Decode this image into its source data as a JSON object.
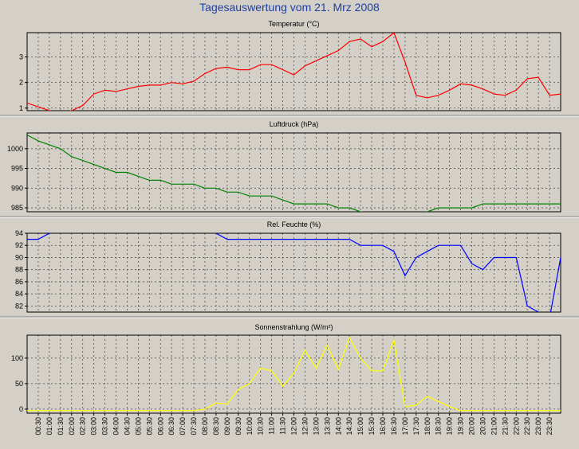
{
  "title": "Tagesauswertung vom 21. Mrz 2008",
  "chart_data": [
    {
      "type": "line",
      "title": "Temperatur (°C)",
      "color": "#ff0000",
      "ylim": [
        0.9,
        3.95
      ],
      "yticks": [
        1,
        2,
        3
      ],
      "x": [
        "00:00",
        "00:30",
        "01:00",
        "01:30",
        "02:00",
        "02:30",
        "03:00",
        "03:30",
        "04:00",
        "04:30",
        "05:00",
        "05:30",
        "06:00",
        "06:30",
        "07:00",
        "07:30",
        "08:00",
        "08:30",
        "09:00",
        "09:30",
        "10:00",
        "10:30",
        "11:00",
        "11:30",
        "12:00",
        "12:30",
        "13:00",
        "13:30",
        "14:00",
        "14:30",
        "15:00",
        "15:30",
        "16:00",
        "16:30",
        "17:00",
        "17:30",
        "18:00",
        "18:30",
        "19:00",
        "19:30",
        "20:00",
        "20:30",
        "21:00",
        "21:30",
        "22:00",
        "22:30",
        "23:00",
        "23:30",
        "24:00"
      ],
      "values": [
        1.2,
        1.05,
        0.9,
        0.8,
        0.9,
        1.1,
        1.55,
        1.7,
        1.65,
        1.75,
        1.85,
        1.9,
        1.9,
        2.0,
        1.95,
        2.05,
        2.35,
        2.55,
        2.6,
        2.5,
        2.5,
        2.7,
        2.7,
        2.5,
        2.3,
        2.65,
        2.85,
        3.05,
        3.25,
        3.6,
        3.7,
        3.4,
        3.6,
        3.95,
        2.8,
        1.5,
        1.4,
        1.5,
        1.7,
        1.95,
        1.9,
        1.75,
        1.55,
        1.5,
        1.7,
        2.15,
        2.2,
        1.5,
        1.55
      ]
    },
    {
      "type": "line",
      "title": "Luftdruck (hPa)",
      "color": "#008000",
      "ylim": [
        984,
        1004
      ],
      "yticks": [
        985,
        990,
        995,
        1000
      ],
      "x": [
        "00:00",
        "00:30",
        "01:00",
        "01:30",
        "02:00",
        "02:30",
        "03:00",
        "03:30",
        "04:00",
        "04:30",
        "05:00",
        "05:30",
        "06:00",
        "06:30",
        "07:00",
        "07:30",
        "08:00",
        "08:30",
        "09:00",
        "09:30",
        "10:00",
        "10:30",
        "11:00",
        "11:30",
        "12:00",
        "12:30",
        "13:00",
        "13:30",
        "14:00",
        "14:30",
        "15:00",
        "15:30",
        "16:00",
        "16:30",
        "17:00",
        "17:30",
        "18:00",
        "18:30",
        "19:00",
        "19:30",
        "20:00",
        "20:30",
        "21:00",
        "21:30",
        "22:00",
        "22:30",
        "23:00",
        "23:30",
        "24:00"
      ],
      "values": [
        1003.5,
        1002.0,
        1001.0,
        1000.0,
        998.0,
        997.0,
        996.0,
        995.0,
        994.0,
        994.0,
        993.0,
        992.0,
        992.0,
        991.0,
        991.0,
        991.0,
        990.0,
        990.0,
        989.0,
        989.0,
        988.0,
        988.0,
        988.0,
        987.0,
        986.0,
        986.0,
        986.0,
        986.0,
        985.0,
        985.0,
        984.0,
        983.5,
        983.0,
        983.0,
        983.0,
        983.0,
        984.0,
        985.0,
        985.0,
        985.0,
        985.0,
        986.0,
        986.0,
        986.0,
        986.0,
        986.0,
        986.0,
        986.0,
        986.0
      ]
    },
    {
      "type": "line",
      "title": "Rel. Feuchte (%)",
      "color": "#0000ff",
      "ylim": [
        81,
        94
      ],
      "yticks": [
        82,
        84,
        86,
        88,
        90,
        92,
        94
      ],
      "x": [
        "00:00",
        "00:30",
        "01:00",
        "01:30",
        "02:00",
        "02:30",
        "03:00",
        "03:30",
        "04:00",
        "04:30",
        "05:00",
        "05:30",
        "06:00",
        "06:30",
        "07:00",
        "07:30",
        "08:00",
        "08:30",
        "09:00",
        "09:30",
        "10:00",
        "10:30",
        "11:00",
        "11:30",
        "12:00",
        "12:30",
        "13:00",
        "13:30",
        "14:00",
        "14:30",
        "15:00",
        "15:30",
        "16:00",
        "16:30",
        "17:00",
        "17:30",
        "18:00",
        "18:30",
        "19:00",
        "19:30",
        "20:00",
        "20:30",
        "21:00",
        "21:30",
        "22:00",
        "22:30",
        "23:00",
        "23:30",
        "24:00"
      ],
      "values": [
        93,
        93,
        94,
        95,
        95,
        95,
        95,
        95,
        95,
        95,
        95,
        95,
        95,
        95,
        95,
        95,
        95,
        94,
        93,
        93,
        93,
        93,
        93,
        93,
        93,
        93,
        93,
        93,
        93,
        93,
        92,
        92,
        92,
        91,
        87,
        90,
        91,
        92,
        92,
        92,
        89,
        88,
        90,
        90,
        90,
        82,
        81,
        80,
        90
      ]
    },
    {
      "type": "line",
      "title": "Sonnenstrahlung (W/m²)",
      "color": "#ffff00",
      "ylim": [
        -8,
        145
      ],
      "yticks": [
        0,
        50,
        100
      ],
      "x": [
        "00:00",
        "00:30",
        "01:00",
        "01:30",
        "02:00",
        "02:30",
        "03:00",
        "03:30",
        "04:00",
        "04:30",
        "05:00",
        "05:30",
        "06:00",
        "06:30",
        "07:00",
        "07:30",
        "08:00",
        "08:30",
        "09:00",
        "09:30",
        "10:00",
        "10:30",
        "11:00",
        "11:30",
        "12:00",
        "12:30",
        "13:00",
        "13:30",
        "14:00",
        "14:30",
        "15:00",
        "15:30",
        "16:00",
        "16:30",
        "17:00",
        "17:30",
        "18:00",
        "18:30",
        "19:00",
        "19:30",
        "20:00",
        "20:30",
        "21:00",
        "21:30",
        "22:00",
        "22:30",
        "23:00",
        "23:30",
        "24:00"
      ],
      "values": [
        -3,
        -3,
        -3,
        -3,
        -3,
        -3,
        -3,
        -3,
        -3,
        -3,
        -3,
        -3,
        -3,
        -3,
        -3,
        -3,
        0,
        12,
        10,
        38,
        50,
        80,
        75,
        45,
        70,
        115,
        80,
        125,
        78,
        140,
        100,
        75,
        75,
        135,
        5,
        8,
        25,
        15,
        5,
        -3,
        -3,
        -3,
        -3,
        -3,
        -3,
        -3,
        -3,
        -3,
        -3
      ]
    }
  ],
  "xtick_labels": [
    "00:30",
    "01:00",
    "01:30",
    "02:00",
    "02:30",
    "03:00",
    "03:30",
    "04:00",
    "04:30",
    "05:00",
    "05:30",
    "06:00",
    "06:30",
    "07:00",
    "07:30",
    "08:00",
    "08:30",
    "09:00",
    "09:30",
    "10:00",
    "10:30",
    "11:00",
    "11:30",
    "12:00",
    "12:30",
    "13:00",
    "13:30",
    "14:00",
    "14:30",
    "15:00",
    "15:30",
    "16:00",
    "16:30",
    "17:00",
    "17:30",
    "18:00",
    "18:30",
    "19:00",
    "19:30",
    "20:00",
    "20:30",
    "21:00",
    "21:30",
    "22:00",
    "22:30",
    "23:00",
    "23:30"
  ]
}
